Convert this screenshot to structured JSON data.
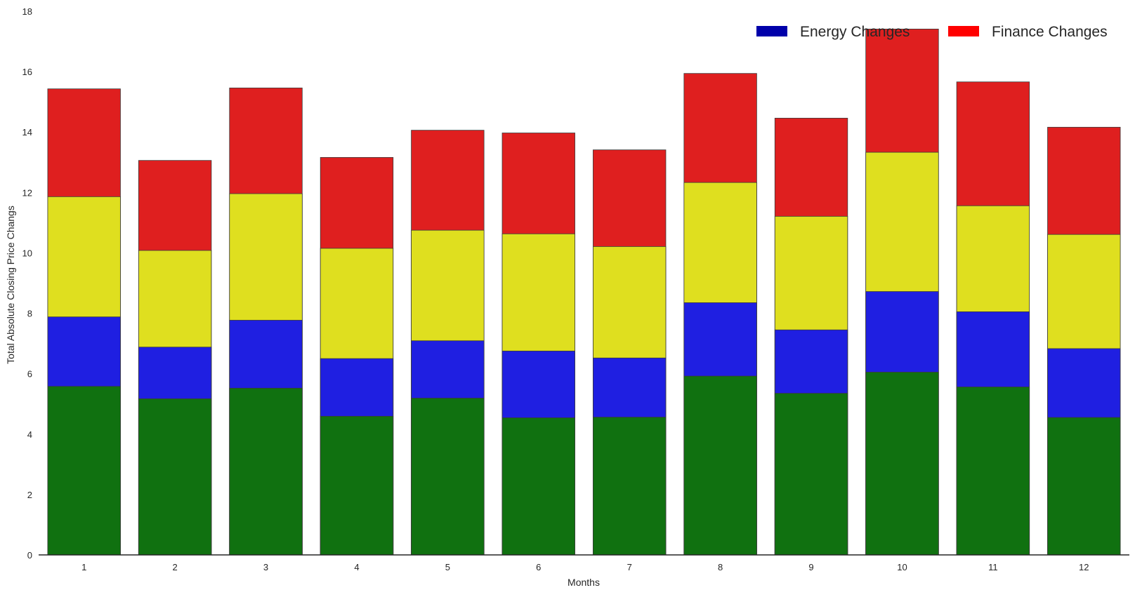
{
  "chart_data": {
    "type": "bar",
    "stacked": true,
    "title": "",
    "xlabel": "Months",
    "ylabel": "Total Absolute Closing Price Changs",
    "ylim": [
      0,
      18
    ],
    "yticks": [
      0,
      2,
      4,
      6,
      8,
      10,
      12,
      14,
      16,
      18
    ],
    "grid": false,
    "legend_position": "top-right",
    "categories": [
      "1",
      "2",
      "3",
      "4",
      "5",
      "6",
      "7",
      "8",
      "9",
      "10",
      "11",
      "12"
    ],
    "stack_totals": [
      [
        5.58,
        7.88,
        11.86,
        15.43
      ],
      [
        5.17,
        6.88,
        10.08,
        13.06
      ],
      [
        5.52,
        7.77,
        11.96,
        15.46
      ],
      [
        4.59,
        6.5,
        10.15,
        13.16
      ],
      [
        5.19,
        7.09,
        10.75,
        14.06
      ],
      [
        4.54,
        6.75,
        10.63,
        13.97
      ],
      [
        4.56,
        6.52,
        10.21,
        13.41
      ],
      [
        5.92,
        8.35,
        12.33,
        15.94
      ],
      [
        5.35,
        7.45,
        11.21,
        14.46
      ],
      [
        6.05,
        8.72,
        13.33,
        17.41
      ],
      [
        5.56,
        8.05,
        11.56,
        15.66
      ],
      [
        4.55,
        6.83,
        10.61,
        14.16
      ]
    ],
    "series": [
      {
        "color": "#107110"
      },
      {
        "color": "#1f1fe1"
      },
      {
        "color": "#dfdf1f"
      },
      {
        "color": "#df1f1f"
      }
    ],
    "legend": [
      {
        "label": "Energy Changes",
        "color": "#0000aa"
      },
      {
        "label": "Finance Changes",
        "color": "#ff0000"
      }
    ]
  }
}
